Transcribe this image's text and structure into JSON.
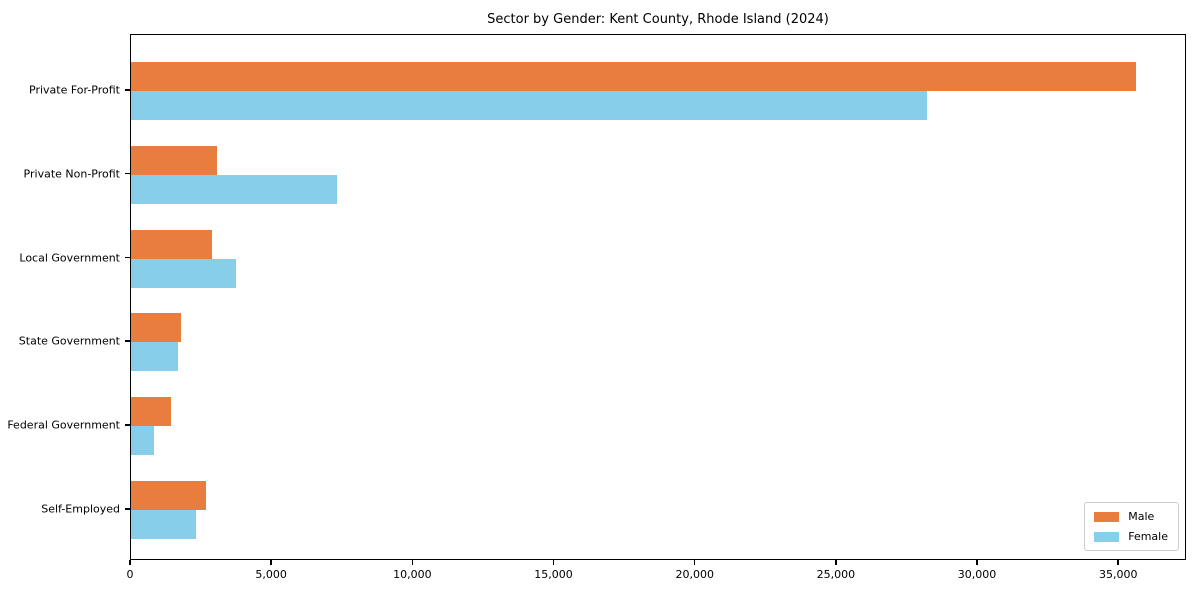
{
  "chart_data": {
    "type": "bar",
    "orientation": "horizontal",
    "title": "Sector by Gender: Kent County, Rhode Island (2024)",
    "categories": [
      "Private For-Profit",
      "Private Non-Profit",
      "Local Government",
      "State Government",
      "Federal Government",
      "Self-Employed"
    ],
    "series": [
      {
        "name": "Male",
        "color": "#e87d3e",
        "values": [
          35600,
          3050,
          2850,
          1780,
          1420,
          2640
        ]
      },
      {
        "name": "Female",
        "color": "#87ceeb",
        "values": [
          28200,
          7300,
          3700,
          1670,
          820,
          2290
        ]
      }
    ],
    "xlabel": "",
    "ylabel": "",
    "xlim": [
      0,
      37400
    ],
    "xticks": [
      0,
      5000,
      10000,
      15000,
      20000,
      25000,
      30000,
      35000
    ],
    "xtick_labels": [
      "0",
      "5,000",
      "10,000",
      "15,000",
      "20,000",
      "25,000",
      "30,000",
      "35,000"
    ],
    "grid": false,
    "legend": {
      "position": "lower right"
    },
    "colors": {
      "axis": "#000000",
      "legend_border": "#cccccc",
      "text": "#000000"
    }
  }
}
